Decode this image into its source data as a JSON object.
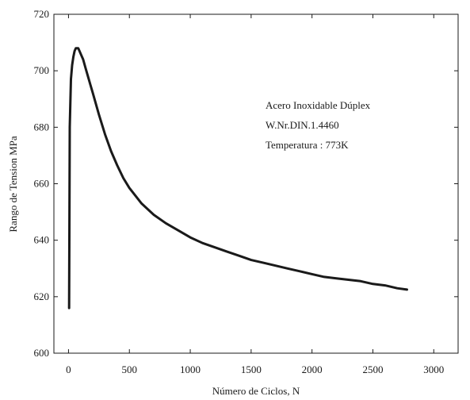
{
  "chart_data": {
    "type": "line",
    "title": "",
    "xlabel": "Número de Ciclos, N",
    "ylabel": "Rango de Tension MPa",
    "xlim": [
      -120,
      3200
    ],
    "ylim": [
      600,
      720
    ],
    "x_ticks": [
      0,
      500,
      1000,
      1500,
      2000,
      2500,
      3000
    ],
    "y_ticks": [
      600,
      620,
      640,
      660,
      680,
      700,
      720
    ],
    "x_tick_labels": [
      "0",
      "500",
      "1000",
      "1500",
      "2000",
      "2500",
      "3000"
    ],
    "y_tick_labels": [
      "600",
      "620",
      "640",
      "660",
      "680",
      "700",
      "720"
    ],
    "grid": false,
    "legend": "none",
    "annotations": [
      "Acero Inoxidable Dúplex",
      "W.Nr.DIN.1.4460",
      "Temperatura : 773K"
    ],
    "series": [
      {
        "x": [
          5,
          10,
          20,
          30,
          40,
          50,
          60,
          70,
          80,
          90,
          100,
          120,
          140,
          160,
          180,
          200,
          250,
          300,
          350,
          400,
          450,
          500,
          600,
          700,
          800,
          900,
          1000,
          1100,
          1200,
          1300,
          1400,
          1500,
          1600,
          1700,
          1800,
          1900,
          2000,
          2100,
          2200,
          2300,
          2400,
          2500,
          2600,
          2700,
          2780
        ],
        "y": [
          616,
          680,
          697,
          702,
          705,
          707,
          708,
          708,
          708,
          707,
          706,
          704,
          701,
          698,
          695,
          692,
          684.5,
          677.5,
          671.5,
          666.5,
          662,
          658.5,
          653,
          649,
          646,
          643.5,
          641,
          639,
          637.5,
          636,
          634.5,
          633,
          632,
          631,
          630,
          629,
          628,
          627,
          626.5,
          626,
          625.5,
          624.5,
          624,
          623,
          622.5
        ],
        "color": "#1a1a1a"
      }
    ]
  }
}
